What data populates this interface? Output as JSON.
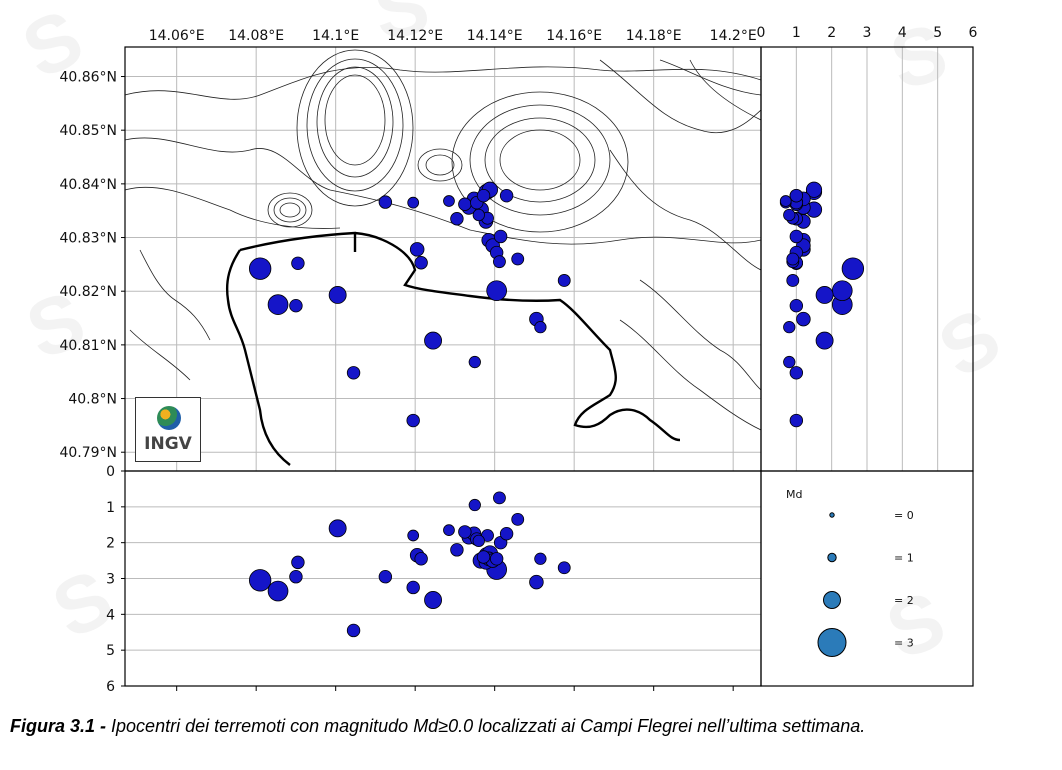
{
  "caption": {
    "label": "Figura 3.1 -",
    "text": " Ipocentri dei terremoti con magnitudo Md≥0.0 localizzati ai Campi Flegrei nell’ultima settimana."
  },
  "logo": {
    "text": "INGV"
  },
  "chart_data": {
    "type": "scatter",
    "map": {
      "lon_ticks": [
        "14.06°E",
        "14.08°E",
        "14.1°E",
        "14.12°E",
        "14.14°E",
        "14.16°E",
        "14.18°E",
        "14.2°E"
      ],
      "lon_tick_values": [
        14.06,
        14.08,
        14.1,
        14.12,
        14.14,
        14.16,
        14.18,
        14.2
      ],
      "lat_ticks": [
        "40.86°N",
        "40.85°N",
        "40.84°N",
        "40.83°N",
        "40.82°N",
        "40.81°N",
        "40.8°N",
        "40.79°N"
      ],
      "lat_tick_values": [
        40.86,
        40.85,
        40.84,
        40.83,
        40.82,
        40.81,
        40.8,
        40.79
      ],
      "xlim": [
        14.047,
        14.207
      ],
      "ylim": [
        40.7865,
        40.8655
      ],
      "grid": true
    },
    "depth_axis": {
      "ticks": [
        "0",
        "1",
        "2",
        "3",
        "4",
        "5",
        "6"
      ],
      "tick_values": [
        0,
        1,
        2,
        3,
        4,
        5,
        6
      ],
      "lim": [
        0,
        6
      ]
    },
    "magnitude_axis": {
      "ticks": [
        "0",
        "1",
        "2",
        "3",
        "4",
        "5",
        "6"
      ],
      "tick_values": [
        0,
        1,
        2,
        3,
        4,
        5,
        6
      ],
      "lim": [
        0,
        6
      ]
    },
    "legend": {
      "title": "Md",
      "entries": [
        {
          "label": "= 0",
          "md": 0
        },
        {
          "label": "= 1",
          "md": 1
        },
        {
          "label": "= 2",
          "md": 2
        },
        {
          "label": "= 3",
          "md": 3
        }
      ],
      "color": "#2b7bb9"
    },
    "marker_color": "#1515c8",
    "events": [
      {
        "lon": 14.081,
        "lat": 40.8242,
        "depth": 3.05,
        "md": 2.6
      },
      {
        "lon": 14.0855,
        "lat": 40.8175,
        "depth": 3.35,
        "md": 2.3
      },
      {
        "lon": 14.0905,
        "lat": 40.8252,
        "depth": 2.55,
        "md": 1.0
      },
      {
        "lon": 14.09,
        "lat": 40.8173,
        "depth": 2.95,
        "md": 1.0
      },
      {
        "lon": 14.1005,
        "lat": 40.8193,
        "depth": 1.6,
        "md": 1.8
      },
      {
        "lon": 14.1045,
        "lat": 40.8048,
        "depth": 4.45,
        "md": 1.0
      },
      {
        "lon": 14.1125,
        "lat": 40.8366,
        "depth": 2.95,
        "md": 1.0
      },
      {
        "lon": 14.1195,
        "lat": 40.7959,
        "depth": 3.25,
        "md": 1.0
      },
      {
        "lon": 14.1205,
        "lat": 40.8278,
        "depth": 2.35,
        "md": 1.2
      },
      {
        "lon": 14.1215,
        "lat": 40.8253,
        "depth": 2.45,
        "md": 1.0
      },
      {
        "lon": 14.1245,
        "lat": 40.8108,
        "depth": 3.6,
        "md": 1.8
      },
      {
        "lon": 14.1195,
        "lat": 40.8365,
        "depth": 1.8,
        "md": 0.7
      },
      {
        "lon": 14.1285,
        "lat": 40.8368,
        "depth": 1.65,
        "md": 0.7
      },
      {
        "lon": 14.1305,
        "lat": 40.8335,
        "depth": 2.2,
        "md": 1.0
      },
      {
        "lon": 14.1325,
        "lat": 40.8362,
        "depth": 1.7,
        "md": 1.0
      },
      {
        "lon": 14.1335,
        "lat": 40.8356,
        "depth": 1.85,
        "md": 1.2
      },
      {
        "lon": 14.1348,
        "lat": 40.8372,
        "depth": 1.75,
        "md": 1.2
      },
      {
        "lon": 14.1355,
        "lat": 40.8365,
        "depth": 1.9,
        "md": 1.0
      },
      {
        "lon": 14.136,
        "lat": 40.8342,
        "depth": 1.95,
        "md": 0.8
      },
      {
        "lon": 14.1372,
        "lat": 40.8378,
        "depth": 2.4,
        "md": 1.0
      },
      {
        "lon": 14.138,
        "lat": 40.8385,
        "depth": 2.35,
        "md": 1.5
      },
      {
        "lon": 14.1388,
        "lat": 40.8389,
        "depth": 2.3,
        "md": 1.5
      },
      {
        "lon": 14.1365,
        "lat": 40.8352,
        "depth": 2.5,
        "md": 1.5
      },
      {
        "lon": 14.1378,
        "lat": 40.833,
        "depth": 2.55,
        "md": 1.2
      },
      {
        "lon": 14.1385,
        "lat": 40.8295,
        "depth": 2.45,
        "md": 1.2
      },
      {
        "lon": 14.1395,
        "lat": 40.8285,
        "depth": 2.5,
        "md": 1.2
      },
      {
        "lon": 14.1405,
        "lat": 40.8272,
        "depth": 2.45,
        "md": 1.0
      },
      {
        "lon": 14.1415,
        "lat": 40.8302,
        "depth": 2.0,
        "md": 1.0
      },
      {
        "lon": 14.1412,
        "lat": 40.8255,
        "depth": 0.75,
        "md": 0.9
      },
      {
        "lon": 14.1405,
        "lat": 40.8201,
        "depth": 2.75,
        "md": 2.3
      },
      {
        "lon": 14.1382,
        "lat": 40.8336,
        "depth": 1.8,
        "md": 0.9
      },
      {
        "lon": 14.143,
        "lat": 40.8378,
        "depth": 1.75,
        "md": 1.0
      },
      {
        "lon": 14.1458,
        "lat": 40.826,
        "depth": 1.35,
        "md": 0.9
      },
      {
        "lon": 14.135,
        "lat": 40.8068,
        "depth": 0.95,
        "md": 0.8
      },
      {
        "lon": 14.1505,
        "lat": 40.8148,
        "depth": 3.1,
        "md": 1.2
      },
      {
        "lon": 14.1515,
        "lat": 40.8133,
        "depth": 2.45,
        "md": 0.8
      },
      {
        "lon": 14.1575,
        "lat": 40.822,
        "depth": 2.7,
        "md": 0.9
      }
    ]
  }
}
